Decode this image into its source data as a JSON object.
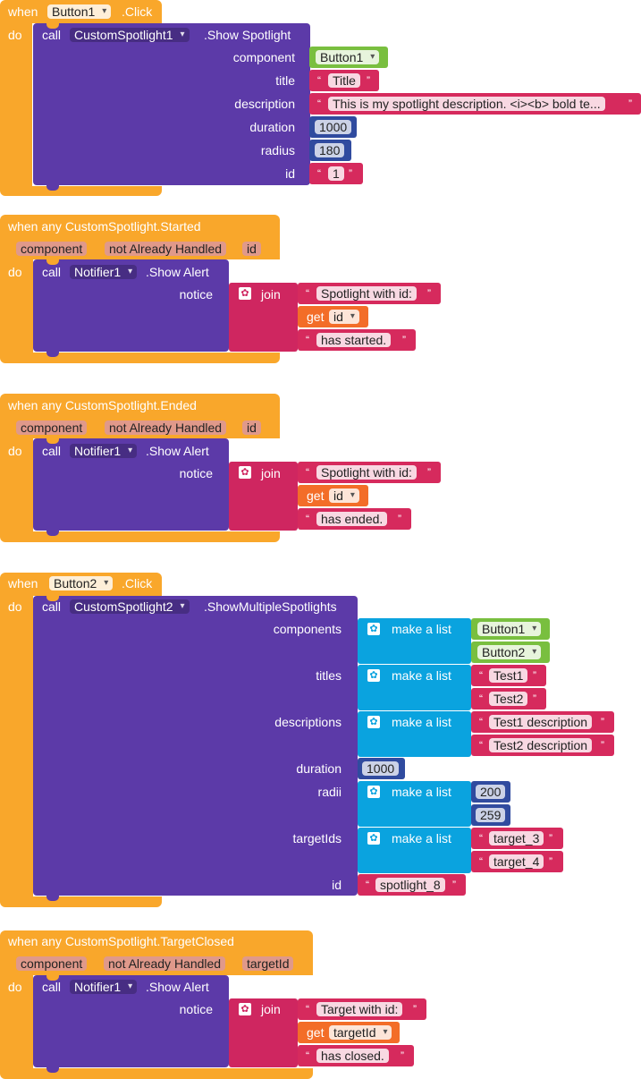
{
  "block1": {
    "when": "when",
    "do": "do",
    "component_name": "Button1",
    "event": ".Click",
    "call": "call",
    "target_name": "CustomSpotlight1",
    "method": ".Show Spotlight",
    "args": {
      "component": {
        "label": "component",
        "value": "Button1"
      },
      "title": {
        "label": "title",
        "value": "Title"
      },
      "description": {
        "label": "description",
        "value": "This is my spotlight description. <i><b> bold te..."
      },
      "duration": {
        "label": "duration",
        "value": "1000"
      },
      "radius": {
        "label": "radius",
        "value": "180"
      },
      "id": {
        "label": "id",
        "value": "1"
      }
    }
  },
  "block2": {
    "header": "when any CustomSpotlight.Started",
    "params": [
      "component",
      "not Already Handled",
      "id"
    ],
    "do": "do",
    "call": "call",
    "target_name": "Notifier1",
    "method": ".Show Alert",
    "notice_label": "notice",
    "join": "join",
    "items": [
      "Spotlight with id:",
      "id",
      "has started."
    ],
    "get": "get"
  },
  "block3": {
    "header": "when any CustomSpotlight.Ended",
    "params": [
      "component",
      "not Already Handled",
      "id"
    ],
    "do": "do",
    "call": "call",
    "target_name": "Notifier1",
    "method": ".Show Alert",
    "notice_label": "notice",
    "join": "join",
    "items": [
      "Spotlight with id:",
      "id",
      "has ended."
    ],
    "get": "get"
  },
  "block4": {
    "when": "when",
    "do": "do",
    "component_name": "Button2",
    "event": ".Click",
    "call": "call",
    "target_name": "CustomSpotlight2",
    "method": ".ShowMultipleSpotlights",
    "make_list": "make a list",
    "components": {
      "label": "components",
      "values": [
        "Button1",
        "Button2"
      ]
    },
    "titles": {
      "label": "titles",
      "values": [
        "Test1",
        "Test2"
      ]
    },
    "descriptions": {
      "label": "descriptions",
      "values": [
        "Test1 description",
        "Test2 description"
      ]
    },
    "duration": {
      "label": "duration",
      "value": "1000"
    },
    "radii": {
      "label": "radii",
      "values": [
        "200",
        "259"
      ]
    },
    "targetIds": {
      "label": "targetIds",
      "values": [
        "target_3",
        "target_4"
      ]
    },
    "id": {
      "label": "id",
      "value": "spotlight_8"
    }
  },
  "block5": {
    "header": "when any CustomSpotlight.TargetClosed",
    "params": [
      "component",
      "not Already Handled",
      "targetId"
    ],
    "do": "do",
    "call": "call",
    "target_name": "Notifier1",
    "method": ".Show Alert",
    "notice_label": "notice",
    "join": "join",
    "items": [
      "Target with id:",
      "targetId",
      "has closed."
    ],
    "get": "get"
  },
  "colors": {
    "event": "#f9a72b",
    "procedure": "#5c3aa8",
    "component": "#79bf3f",
    "text": "#d62a5d",
    "number": "#304b9f",
    "join": "#cf2660",
    "get": "#f36d28",
    "list": "#0aa3df"
  },
  "icons": [
    "dropdown-icon",
    "gear-icon",
    "quote-icon"
  ]
}
